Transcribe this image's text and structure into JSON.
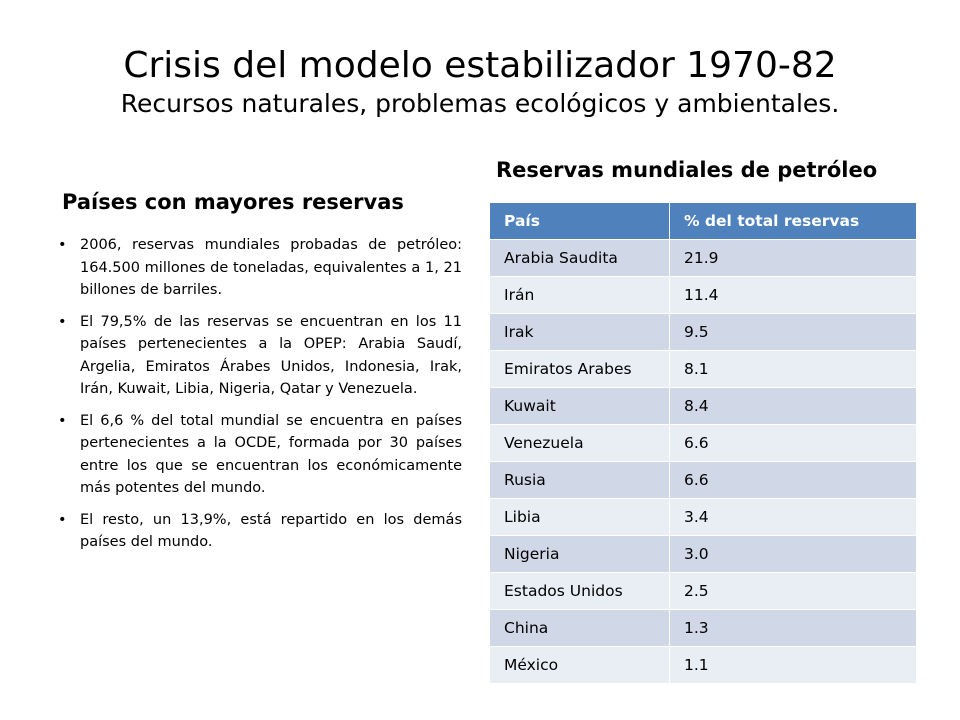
{
  "slide": {
    "title": "Crisis del modelo estabilizador 1970-82",
    "subtitle": "Recursos naturales, problemas ecológicos y ambientales."
  },
  "left": {
    "heading": "Países con mayores reservas",
    "bullet_glyph": "•",
    "bullets": [
      "2006, reservas mundiales probadas de petróleo: 164.500 millones de toneladas, equivalentes a 1, 21 billones de barriles.",
      "El 79,5% de las reservas se encuentran en los 11 países pertenecientes a la OPEP: Arabia Saudí, Argelia, Emiratos Árabes Unidos, Indonesia, Irak, Irán, Kuwait, Libia, Nigeria, Qatar y Venezuela.",
      "El 6,6 % del total mundial se encuentra en países pertenecientes a la OCDE, formada por 30 países entre los que se encuentran los económicamente más potentes del mundo.",
      "El resto, un 13,9%, está repartido en los demás países del mundo."
    ]
  },
  "right": {
    "heading": "Reservas mundiales de petróleo",
    "table": {
      "headers": [
        "País",
        "% del total reservas"
      ],
      "rows": [
        [
          "Arabia Saudita",
          "21.9"
        ],
        [
          "Irán",
          "11.4"
        ],
        [
          "Irak",
          "9.5"
        ],
        [
          "Emiratos Arabes",
          "8.1"
        ],
        [
          "Kuwait",
          "8.4"
        ],
        [
          "Venezuela",
          "6.6"
        ],
        [
          "Rusia",
          "6.6"
        ],
        [
          "Libia",
          "3.4"
        ],
        [
          "Nigeria",
          "3.0"
        ],
        [
          "Estados Unidos",
          "2.5"
        ],
        [
          "China",
          "1.3"
        ],
        [
          "México",
          "1.1"
        ]
      ]
    }
  },
  "colors": {
    "header_bg": "#4f81bd",
    "row_dark": "#d0d8e8",
    "row_light": "#e9edf4"
  }
}
